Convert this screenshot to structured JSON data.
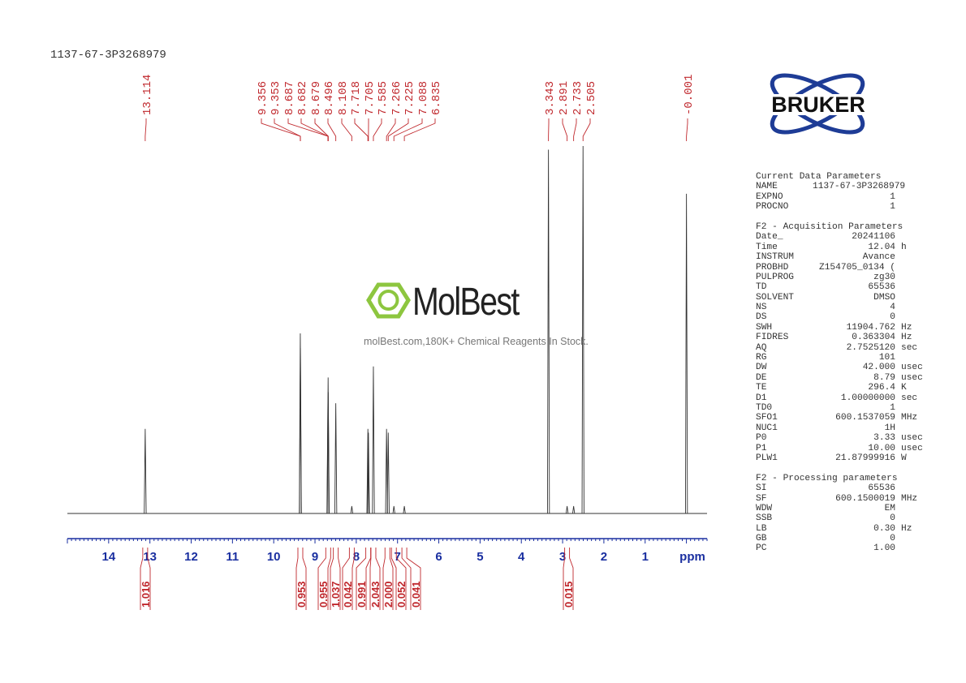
{
  "title": "1137-67-3P3268979",
  "watermark": {
    "name": "MolBest",
    "subtitle": "molBest.com,180K+ Chemical Reagents In Stock.",
    "color": "#8dc63f"
  },
  "logo": {
    "text": "BRUKER",
    "color": "#1e3c96"
  },
  "params": [
    {
      "type": "head",
      "text": "Current Data Parameters"
    },
    {
      "k": "NAME",
      "v": "1137-67-3P3268979",
      "u": ""
    },
    {
      "k": "EXPNO",
      "v": "1",
      "u": ""
    },
    {
      "k": "PROCNO",
      "v": "1",
      "u": ""
    },
    {
      "type": "gap"
    },
    {
      "type": "head",
      "text": "F2 - Acquisition Parameters"
    },
    {
      "k": "Date_",
      "v": "20241106",
      "u": ""
    },
    {
      "k": "Time",
      "v": "12.04",
      "u": "h"
    },
    {
      "k": "INSTRUM",
      "v": "Avance",
      "u": ""
    },
    {
      "k": "PROBHD",
      "v": "Z154705_0134 (",
      "u": ""
    },
    {
      "k": "PULPROG",
      "v": "zg30",
      "u": ""
    },
    {
      "k": "TD",
      "v": "65536",
      "u": ""
    },
    {
      "k": "SOLVENT",
      "v": "DMSO",
      "u": ""
    },
    {
      "k": "NS",
      "v": "4",
      "u": ""
    },
    {
      "k": "DS",
      "v": "0",
      "u": ""
    },
    {
      "k": "SWH",
      "v": "11904.762",
      "u": "Hz"
    },
    {
      "k": "FIDRES",
      "v": "0.363304",
      "u": "Hz"
    },
    {
      "k": "AQ",
      "v": "2.7525120",
      "u": "sec"
    },
    {
      "k": "RG",
      "v": "101",
      "u": ""
    },
    {
      "k": "DW",
      "v": "42.000",
      "u": "usec"
    },
    {
      "k": "DE",
      "v": "8.79",
      "u": "usec"
    },
    {
      "k": "TE",
      "v": "296.4",
      "u": "K"
    },
    {
      "k": "D1",
      "v": "1.00000000",
      "u": "sec"
    },
    {
      "k": "TD0",
      "v": "1",
      "u": ""
    },
    {
      "k": "SFO1",
      "v": "600.1537059",
      "u": "MHz"
    },
    {
      "k": "NUC1",
      "v": "1H",
      "u": ""
    },
    {
      "k": "P0",
      "v": "3.33",
      "u": "usec"
    },
    {
      "k": "P1",
      "v": "10.00",
      "u": "usec"
    },
    {
      "k": "PLW1",
      "v": "21.87999916",
      "u": "W"
    },
    {
      "type": "gap"
    },
    {
      "type": "head",
      "text": "F2 - Processing parameters"
    },
    {
      "k": "SI",
      "v": "65536",
      "u": ""
    },
    {
      "k": "SF",
      "v": "600.1500019",
      "u": "MHz"
    },
    {
      "k": "WDW",
      "v": "EM",
      "u": ""
    },
    {
      "k": "SSB",
      "v": "0",
      "u": ""
    },
    {
      "k": "LB",
      "v": "0.30",
      "u": "Hz"
    },
    {
      "k": "GB",
      "v": "0",
      "u": ""
    },
    {
      "k": "PC",
      "v": "1.00",
      "u": ""
    }
  ],
  "chart_data": {
    "type": "line",
    "xlabel": "ppm",
    "xlim": [
      15.0,
      -0.5
    ],
    "x_reversed": true,
    "xticks": [
      "14",
      "13",
      "12",
      "11",
      "10",
      "9",
      "8",
      "7",
      "6",
      "5",
      "4",
      "3",
      "2",
      "1"
    ],
    "line_color": "#333333",
    "label_color": "#c0282d",
    "axis_color": "#1a2fa0",
    "peak_labels": [
      "13.114",
      "9.356",
      "9.353",
      "8.687",
      "8.682",
      "8.679",
      "8.496",
      "8.108",
      "7.718",
      "7.705",
      "7.585",
      "7.266",
      "7.225",
      "7.088",
      "6.835",
      "3.343",
      "2.891",
      "2.733",
      "2.505",
      "-0.001"
    ],
    "peaks": [
      {
        "ppm": 13.114,
        "intensity": 23
      },
      {
        "ppm": 9.356,
        "intensity": 49
      },
      {
        "ppm": 9.353,
        "intensity": 45
      },
      {
        "ppm": 8.687,
        "intensity": 30
      },
      {
        "ppm": 8.682,
        "intensity": 37
      },
      {
        "ppm": 8.679,
        "intensity": 33
      },
      {
        "ppm": 8.496,
        "intensity": 30
      },
      {
        "ppm": 8.108,
        "intensity": 2
      },
      {
        "ppm": 7.718,
        "intensity": 23
      },
      {
        "ppm": 7.705,
        "intensity": 22
      },
      {
        "ppm": 7.585,
        "intensity": 40
      },
      {
        "ppm": 7.266,
        "intensity": 23
      },
      {
        "ppm": 7.225,
        "intensity": 22
      },
      {
        "ppm": 7.088,
        "intensity": 2
      },
      {
        "ppm": 6.835,
        "intensity": 2
      },
      {
        "ppm": 3.343,
        "intensity": 99
      },
      {
        "ppm": 2.891,
        "intensity": 2
      },
      {
        "ppm": 2.733,
        "intensity": 2
      },
      {
        "ppm": 2.505,
        "intensity": 100
      },
      {
        "ppm": -0.001,
        "intensity": 87
      }
    ],
    "integrals": [
      {
        "ppm": 13.114,
        "value": "1.016"
      },
      {
        "ppm": 9.355,
        "value": "0.953"
      },
      {
        "ppm": 8.68,
        "value": "0.955"
      },
      {
        "ppm": 8.496,
        "value": "1.037"
      },
      {
        "ppm": 8.108,
        "value": "0.042"
      },
      {
        "ppm": 7.71,
        "value": "0.991"
      },
      {
        "ppm": 7.585,
        "value": "2.043"
      },
      {
        "ppm": 7.245,
        "value": "2.000"
      },
      {
        "ppm": 7.088,
        "value": "0.052"
      },
      {
        "ppm": 6.835,
        "value": "0.041"
      },
      {
        "ppm": 2.891,
        "value": "0.015"
      }
    ]
  }
}
